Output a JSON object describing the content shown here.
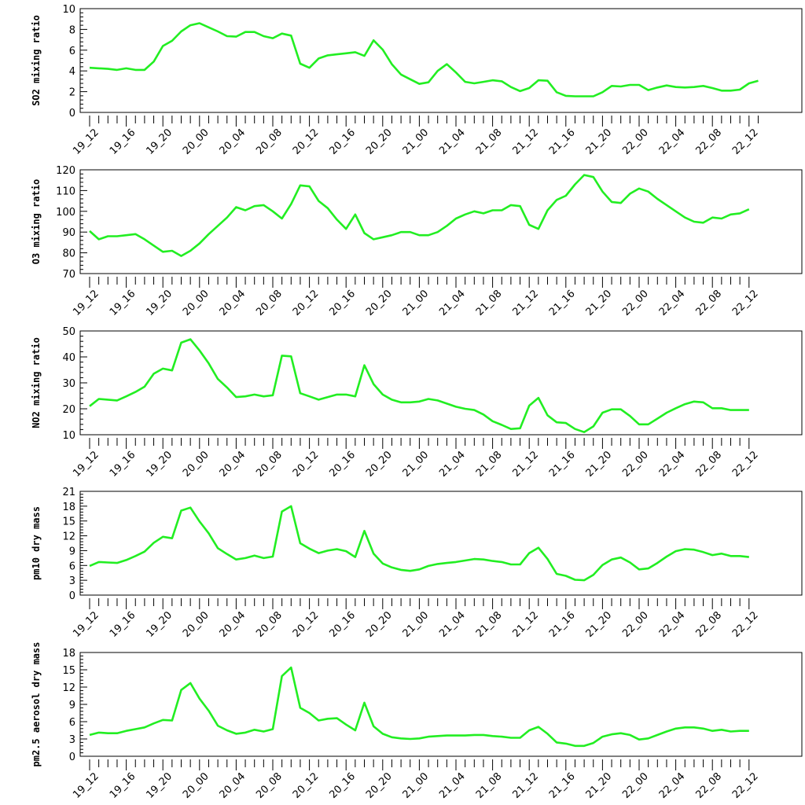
{
  "chart_data": [
    {
      "type": "line",
      "ylabel": "SO2 mixing ratio",
      "ylim": [
        0,
        10
      ],
      "yticks": [
        0,
        2,
        4,
        6,
        8,
        10
      ],
      "color": "#22ee22",
      "xticklabels": [
        "19_12",
        "19_16",
        "19_20",
        "20_00",
        "20_04",
        "20_08",
        "20_12",
        "20_16",
        "20_20",
        "21_00",
        "21_04",
        "21_08",
        "21_12",
        "21_16",
        "21_20",
        "22_00",
        "22_04",
        "22_08",
        "22_12"
      ],
      "values": [
        4.3,
        4.25,
        4.2,
        4.1,
        4.25,
        4.1,
        4.1,
        4.9,
        6.4,
        6.9,
        7.8,
        8.4,
        8.6,
        8.2,
        7.8,
        7.35,
        7.3,
        7.75,
        7.75,
        7.35,
        7.15,
        7.6,
        7.4,
        4.7,
        4.3,
        5.2,
        5.5,
        5.6,
        5.7,
        5.8,
        5.45,
        6.95,
        6.05,
        4.65,
        3.65,
        3.2,
        2.75,
        2.9,
        4.0,
        4.65,
        3.85,
        2.95,
        2.8,
        2.95,
        3.1,
        3.0,
        2.45,
        2.05,
        2.35,
        3.1,
        3.05,
        1.95,
        1.6,
        1.55,
        1.55,
        1.55,
        1.95,
        2.55,
        2.5,
        2.65,
        2.65,
        2.15,
        2.4,
        2.6,
        2.45,
        2.4,
        2.45,
        2.55,
        2.35,
        2.1,
        2.1,
        2.2,
        2.8,
        3.05
      ]
    },
    {
      "type": "line",
      "ylabel": "O3 mixing ratio",
      "ylim": [
        70,
        120
      ],
      "yticks": [
        70,
        80,
        90,
        100,
        110,
        120
      ],
      "color": "#22ee22",
      "xticklabels": [
        "19_12",
        "19_16",
        "19_20",
        "20_00",
        "20_04",
        "20_08",
        "20_12",
        "20_16",
        "20_20",
        "21_00",
        "21_04",
        "21_08",
        "21_12",
        "21_16",
        "21_20",
        "22_00",
        "22_04",
        "22_08",
        "22_12"
      ],
      "values": [
        90.5,
        86.5,
        88,
        88,
        88.5,
        89,
        86.5,
        83.5,
        80.5,
        81,
        78.5,
        81,
        84.5,
        89,
        93,
        97,
        102,
        100.5,
        102.5,
        103,
        100,
        96.5,
        103.5,
        112.5,
        112,
        105,
        101.5,
        96,
        91.5,
        98.5,
        89.5,
        86.5,
        87.5,
        88.5,
        90,
        90,
        88.5,
        88.5,
        90,
        93,
        96.5,
        98.5,
        100,
        99,
        100.5,
        100.5,
        103,
        102.5,
        93.5,
        91.5,
        100.5,
        105.5,
        107.5,
        113,
        117.5,
        116.5,
        109.5,
        104.5,
        104,
        108.5,
        111,
        109.5,
        106,
        103,
        100,
        97,
        95,
        94.5,
        97,
        96.5,
        98.5,
        99,
        101
      ]
    },
    {
      "type": "line",
      "ylabel": "NO2 mixing ratio",
      "ylim": [
        10,
        50
      ],
      "yticks": [
        10,
        20,
        30,
        40,
        50
      ],
      "color": "#22ee22",
      "xticklabels": [
        "19_12",
        "19_16",
        "19_20",
        "20_00",
        "20_04",
        "20_08",
        "20_12",
        "20_16",
        "20_20",
        "21_00",
        "21_04",
        "21_08",
        "21_12",
        "21_16",
        "21_20",
        "22_00",
        "22_04",
        "22_08",
        "22_12"
      ],
      "values": [
        21,
        23.8,
        23.5,
        23.2,
        24.8,
        26.5,
        28.5,
        33.5,
        35.5,
        34.8,
        45.5,
        46.8,
        42.5,
        37.5,
        31.5,
        28.2,
        24.5,
        24.8,
        25.5,
        24.8,
        25.2,
        40.5,
        40.2,
        26,
        24.8,
        23.5,
        24.5,
        25.5,
        25.5,
        24.8,
        36.8,
        29.5,
        25.5,
        23.5,
        22.5,
        22.5,
        22.8,
        23.8,
        23.2,
        22,
        20.8,
        20,
        19.5,
        17.8,
        15.2,
        13.8,
        12.2,
        12.5,
        21.2,
        24.2,
        17.5,
        14.8,
        14.5,
        12.2,
        11,
        13.2,
        18.5,
        19.8,
        19.8,
        17.2,
        14,
        14,
        16.2,
        18.5,
        20.2,
        21.8,
        22.8,
        22.5,
        20.2,
        20.2,
        19.5,
        19.5,
        19.5
      ]
    },
    {
      "type": "line",
      "ylabel": "pm10 dry mass",
      "ylim": [
        0,
        21
      ],
      "yticks": [
        0,
        3,
        6,
        9,
        12,
        15,
        18,
        21
      ],
      "color": "#22ee22",
      "xticklabels": [
        "19_12",
        "19_16",
        "19_20",
        "20_00",
        "20_04",
        "20_08",
        "20_12",
        "20_16",
        "20_20",
        "21_00",
        "21_04",
        "21_08",
        "21_12",
        "21_16",
        "21_20",
        "22_00",
        "22_04",
        "22_08",
        "22_12"
      ],
      "values": [
        5.9,
        6.7,
        6.6,
        6.5,
        7.1,
        7.9,
        8.8,
        10.6,
        11.8,
        11.5,
        17.1,
        17.7,
        14.9,
        12.5,
        9.5,
        8.3,
        7.2,
        7.5,
        8,
        7.5,
        7.8,
        16.9,
        18,
        10.5,
        9.4,
        8.5,
        9,
        9.3,
        8.9,
        7.7,
        13,
        8.4,
        6.4,
        5.6,
        5.1,
        4.9,
        5.2,
        5.9,
        6.3,
        6.5,
        6.7,
        7,
        7.3,
        7.2,
        6.9,
        6.7,
        6.2,
        6.2,
        8.5,
        9.6,
        7.3,
        4.3,
        3.9,
        3.1,
        3,
        4.1,
        6.1,
        7.2,
        7.6,
        6.6,
        5.2,
        5.4,
        6.5,
        7.8,
        8.9,
        9.3,
        9.2,
        8.7,
        8.1,
        8.4,
        7.9,
        7.9,
        7.7
      ]
    },
    {
      "type": "line",
      "ylabel": "pm2.5 aerosol dry mass",
      "ylim": [
        0,
        18
      ],
      "yticks": [
        0,
        3,
        6,
        9,
        12,
        15,
        18
      ],
      "color": "#22ee22",
      "xticklabels": [
        "19_12",
        "19_16",
        "19_20",
        "20_00",
        "20_04",
        "20_08",
        "20_12",
        "20_16",
        "20_20",
        "21_00",
        "21_04",
        "21_08",
        "21_12",
        "21_16",
        "21_20",
        "22_00",
        "22_04",
        "22_08",
        "22_12"
      ],
      "values": [
        3.7,
        4.1,
        4,
        4,
        4.4,
        4.7,
        5,
        5.7,
        6.3,
        6.2,
        11.5,
        12.7,
        10,
        7.9,
        5.3,
        4.5,
        3.9,
        4.1,
        4.6,
        4.3,
        4.7,
        13.9,
        15.4,
        8.4,
        7.5,
        6.2,
        6.5,
        6.6,
        5.5,
        4.5,
        9.3,
        5.2,
        3.9,
        3.3,
        3.1,
        3,
        3.1,
        3.4,
        3.5,
        3.6,
        3.6,
        3.6,
        3.7,
        3.7,
        3.5,
        3.4,
        3.2,
        3.2,
        4.5,
        5.1,
        3.9,
        2.4,
        2.2,
        1.8,
        1.8,
        2.3,
        3.4,
        3.8,
        4,
        3.7,
        2.9,
        3.1,
        3.7,
        4.3,
        4.8,
        5,
        5,
        4.8,
        4.4,
        4.6,
        4.3,
        4.4,
        4.4
      ]
    }
  ]
}
